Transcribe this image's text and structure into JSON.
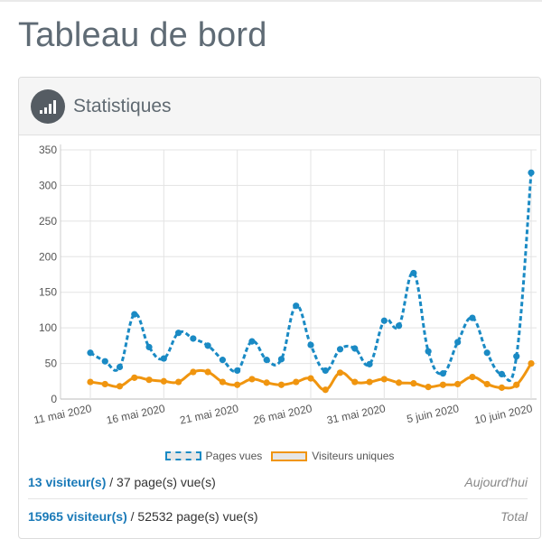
{
  "page": {
    "title": "Tableau de bord"
  },
  "panel": {
    "title": "Statistiques",
    "icon": "signal-bars-icon"
  },
  "chart_data": {
    "type": "line",
    "ylim": [
      0,
      350
    ],
    "yticks": [
      0,
      50,
      100,
      150,
      200,
      250,
      300,
      350
    ],
    "start_day_index": 0,
    "x_tick_labels": [
      {
        "label": "11 mai 2020",
        "index": 0
      },
      {
        "label": "16 mai 2020",
        "index": 5
      },
      {
        "label": "21 mai 2020",
        "index": 10
      },
      {
        "label": "26 mai 2020",
        "index": 15
      },
      {
        "label": "31 mai 2020",
        "index": 20
      },
      {
        "label": "5 juin 2020",
        "index": 25
      },
      {
        "label": "10 juin 2020",
        "index": 30
      }
    ],
    "series": [
      {
        "name": "Pages vues",
        "color": "#1a8ac4",
        "style": "dashed",
        "values": [
          65,
          53,
          45,
          119,
          73,
          57,
          93,
          85,
          75,
          55,
          40,
          81,
          55,
          56,
          131,
          76,
          40,
          70,
          71,
          49,
          110,
          103,
          177,
          67,
          36,
          80,
          114,
          65,
          35,
          60,
          318
        ]
      },
      {
        "name": "Visiteurs uniques",
        "color": "#f0950f",
        "style": "solid",
        "values": [
          24,
          21,
          18,
          30,
          27,
          25,
          24,
          38,
          38,
          24,
          20,
          28,
          23,
          20,
          24,
          29,
          13,
          37,
          24,
          24,
          28,
          23,
          22,
          17,
          20,
          21,
          31,
          21,
          16,
          20,
          50
        ]
      }
    ]
  },
  "legend": {
    "pages": "Pages vues",
    "visitors": "Visiteurs uniques"
  },
  "stats": {
    "today": {
      "visitors": "13 visiteur(s)",
      "pages": " / 37 page(s) vue(s)",
      "period": "Aujourd'hui"
    },
    "total": {
      "visitors": "15965 visiteur(s)",
      "pages": " / 52532 page(s) vue(s)",
      "period": "Total"
    }
  },
  "colors": {
    "pages": "#1a8ac4",
    "visitors": "#f0950f",
    "link": "#1a7ab8"
  }
}
